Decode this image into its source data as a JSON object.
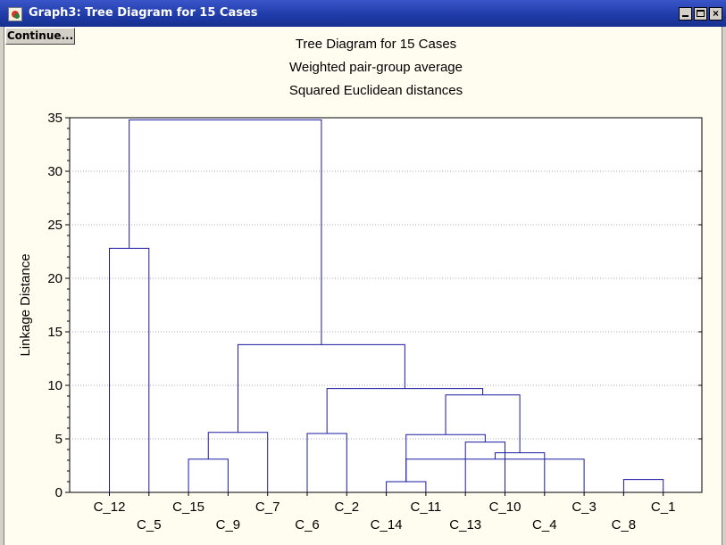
{
  "window": {
    "title": "Graph3: Tree Diagram for 15 Cases",
    "continue_label": "Continue...",
    "close_glyph": "×",
    "icons": [
      "app-icon",
      "minimize-icon",
      "maximize-icon",
      "close-icon"
    ]
  },
  "chart_data": {
    "type": "dendrogram",
    "title": "Tree Diagram for 15 Cases",
    "subtitle1": "Weighted pair-group average",
    "subtitle2": "Squared Euclidean distances",
    "ylabel": "Linkage Distance",
    "ylim": [
      0,
      35
    ],
    "yticks": [
      0,
      5,
      10,
      15,
      20,
      25,
      30,
      35
    ],
    "leaves": [
      "C_12",
      "C_5",
      "C_15",
      "C_9",
      "C_7",
      "C_6",
      "C_2",
      "C_14",
      "C_11",
      "C_13",
      "C_10",
      "C_4",
      "C_3",
      "C_8",
      "C_1"
    ],
    "merges": [
      {
        "a": 14,
        "b": 13,
        "height": 1.2
      },
      {
        "a": 7,
        "b": 8,
        "height": 1.0
      },
      {
        "a": 12,
        "b": 16,
        "height": 3.1
      },
      {
        "a": 2,
        "b": 3,
        "height": 3.1
      },
      {
        "a": 11,
        "b": 17,
        "height": 3.7
      },
      {
        "a": 9,
        "b": 10,
        "height": 4.7
      },
      {
        "a": 16,
        "b": 20,
        "height": 5.4
      },
      {
        "a": 5,
        "b": 6,
        "height": 5.5
      },
      {
        "a": 18,
        "b": 4,
        "height": 5.6
      },
      {
        "a": 21,
        "b": 19,
        "height": 9.1
      },
      {
        "a": 22,
        "b": 24,
        "height": 9.7
      },
      {
        "a": 23,
        "b": 25,
        "height": 13.8
      },
      {
        "a": 0,
        "b": 1,
        "height": 22.8
      },
      {
        "a": 27,
        "b": 26,
        "height": 34.8
      }
    ],
    "grid": "horizontal-dotted",
    "line_color": "#1a1aa0"
  }
}
